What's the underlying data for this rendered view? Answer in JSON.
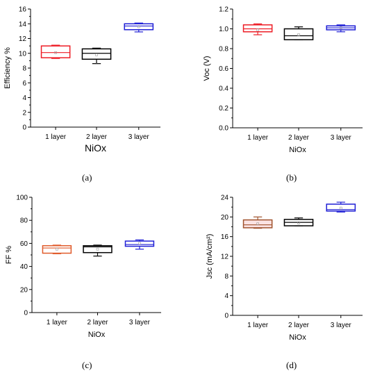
{
  "figure": {
    "panel_labels": [
      "(a)",
      "(b)",
      "(c)",
      "(d)"
    ]
  },
  "chart_data": [
    {
      "type": "box",
      "title": "",
      "xlabel": "NiOx",
      "ylabel": "Efficiency %",
      "categories": [
        "1 layer",
        "2 layer",
        "3 layer"
      ],
      "ylim": [
        0,
        16
      ],
      "yticks": [
        0,
        2,
        4,
        6,
        8,
        10,
        12,
        14,
        16
      ],
      "ytick_labels": [
        "0",
        "2",
        "4",
        "6",
        "8",
        "10",
        "12",
        "14",
        "16"
      ],
      "grid": false,
      "series": [
        {
          "category": "1 layer",
          "color": "#ee1c25",
          "whisker_low": 9.3,
          "q1": 9.4,
          "median": 10.1,
          "mean": 10.1,
          "q3": 11.0,
          "whisker_high": 11.1
        },
        {
          "category": "2 layer",
          "color": "#000000",
          "whisker_low": 8.6,
          "q1": 9.2,
          "median": 10.0,
          "mean": 9.8,
          "q3": 10.6,
          "whisker_high": 10.7,
          "outliers": [
            8.6
          ]
        },
        {
          "category": "3 layer",
          "color": "#1f1fd6",
          "whisker_low": 12.9,
          "q1": 13.2,
          "median": 13.7,
          "mean": 13.6,
          "q3": 14.0,
          "whisker_high": 14.1
        }
      ]
    },
    {
      "type": "box",
      "title": "",
      "xlabel": "NiOx",
      "ylabel": "Voc (V)",
      "categories": [
        "1 layer",
        "2 layer",
        "3 layer"
      ],
      "ylim": [
        0.0,
        1.2
      ],
      "yticks": [
        0.0,
        0.2,
        0.4,
        0.6,
        0.8,
        1.0,
        1.2
      ],
      "ytick_labels": [
        "0.0",
        "0.2",
        "0.4",
        "0.6",
        "0.8",
        "1.0",
        "1.2"
      ],
      "grid": false,
      "series": [
        {
          "category": "1 layer",
          "color": "#ee1c25",
          "whisker_low": 0.94,
          "q1": 0.97,
          "median": 1.0,
          "mean": 0.99,
          "q3": 1.04,
          "whisker_high": 1.05
        },
        {
          "category": "2 layer",
          "color": "#000000",
          "whisker_low": 0.89,
          "q1": 0.89,
          "median": 0.93,
          "mean": 0.94,
          "q3": 1.0,
          "whisker_high": 1.02
        },
        {
          "category": "3 layer",
          "color": "#1f1fd6",
          "whisker_low": 0.97,
          "q1": 0.99,
          "median": 1.01,
          "mean": 1.01,
          "q3": 1.03,
          "whisker_high": 1.04
        }
      ]
    },
    {
      "type": "box",
      "title": "",
      "xlabel": "NiOx",
      "ylabel": "FF %",
      "categories": [
        "1 layer",
        "2 layer",
        "3 layer"
      ],
      "ylim": [
        0,
        100
      ],
      "yticks": [
        0,
        20,
        40,
        60,
        80,
        100
      ],
      "ytick_labels": [
        "0",
        "20",
        "40",
        "60",
        "80",
        "100"
      ],
      "grid": false,
      "series": [
        {
          "category": "1 layer",
          "color": "#e05a2a",
          "whisker_low": 51,
          "q1": 51.5,
          "median": 56,
          "mean": 55,
          "q3": 58,
          "whisker_high": 58.5
        },
        {
          "category": "2 layer",
          "color": "#000000",
          "whisker_low": 49,
          "q1": 52,
          "median": 57,
          "mean": 55,
          "q3": 58,
          "whisker_high": 58.5
        },
        {
          "category": "3 layer",
          "color": "#1f1fd6",
          "whisker_low": 55,
          "q1": 57.5,
          "median": 59,
          "mean": 60,
          "q3": 62,
          "whisker_high": 63
        }
      ]
    },
    {
      "type": "box",
      "title": "",
      "xlabel": "NiOx",
      "ylabel": "Jsc (mA/cm²)",
      "categories": [
        "1 layer",
        "2 layer",
        "3 layer"
      ],
      "ylim": [
        0,
        24
      ],
      "yticks": [
        0,
        4,
        8,
        12,
        16,
        20,
        24
      ],
      "ytick_labels": [
        "0",
        "4",
        "8",
        "12",
        "16",
        "20",
        "24"
      ],
      "grid": false,
      "series": [
        {
          "category": "1 layer",
          "color": "#a0522d",
          "whisker_low": 17.7,
          "q1": 17.8,
          "median": 18.4,
          "mean": 18.6,
          "q3": 19.4,
          "whisker_high": 20.0
        },
        {
          "category": "2 layer",
          "color": "#000000",
          "whisker_low": 18.2,
          "q1": 18.2,
          "median": 18.9,
          "mean": 18.8,
          "q3": 19.5,
          "whisker_high": 19.8
        },
        {
          "category": "3 layer",
          "color": "#1f1fd6",
          "whisker_low": 21.0,
          "q1": 21.2,
          "median": 21.5,
          "mean": 21.8,
          "q3": 22.6,
          "whisker_high": 23.0
        }
      ]
    }
  ]
}
